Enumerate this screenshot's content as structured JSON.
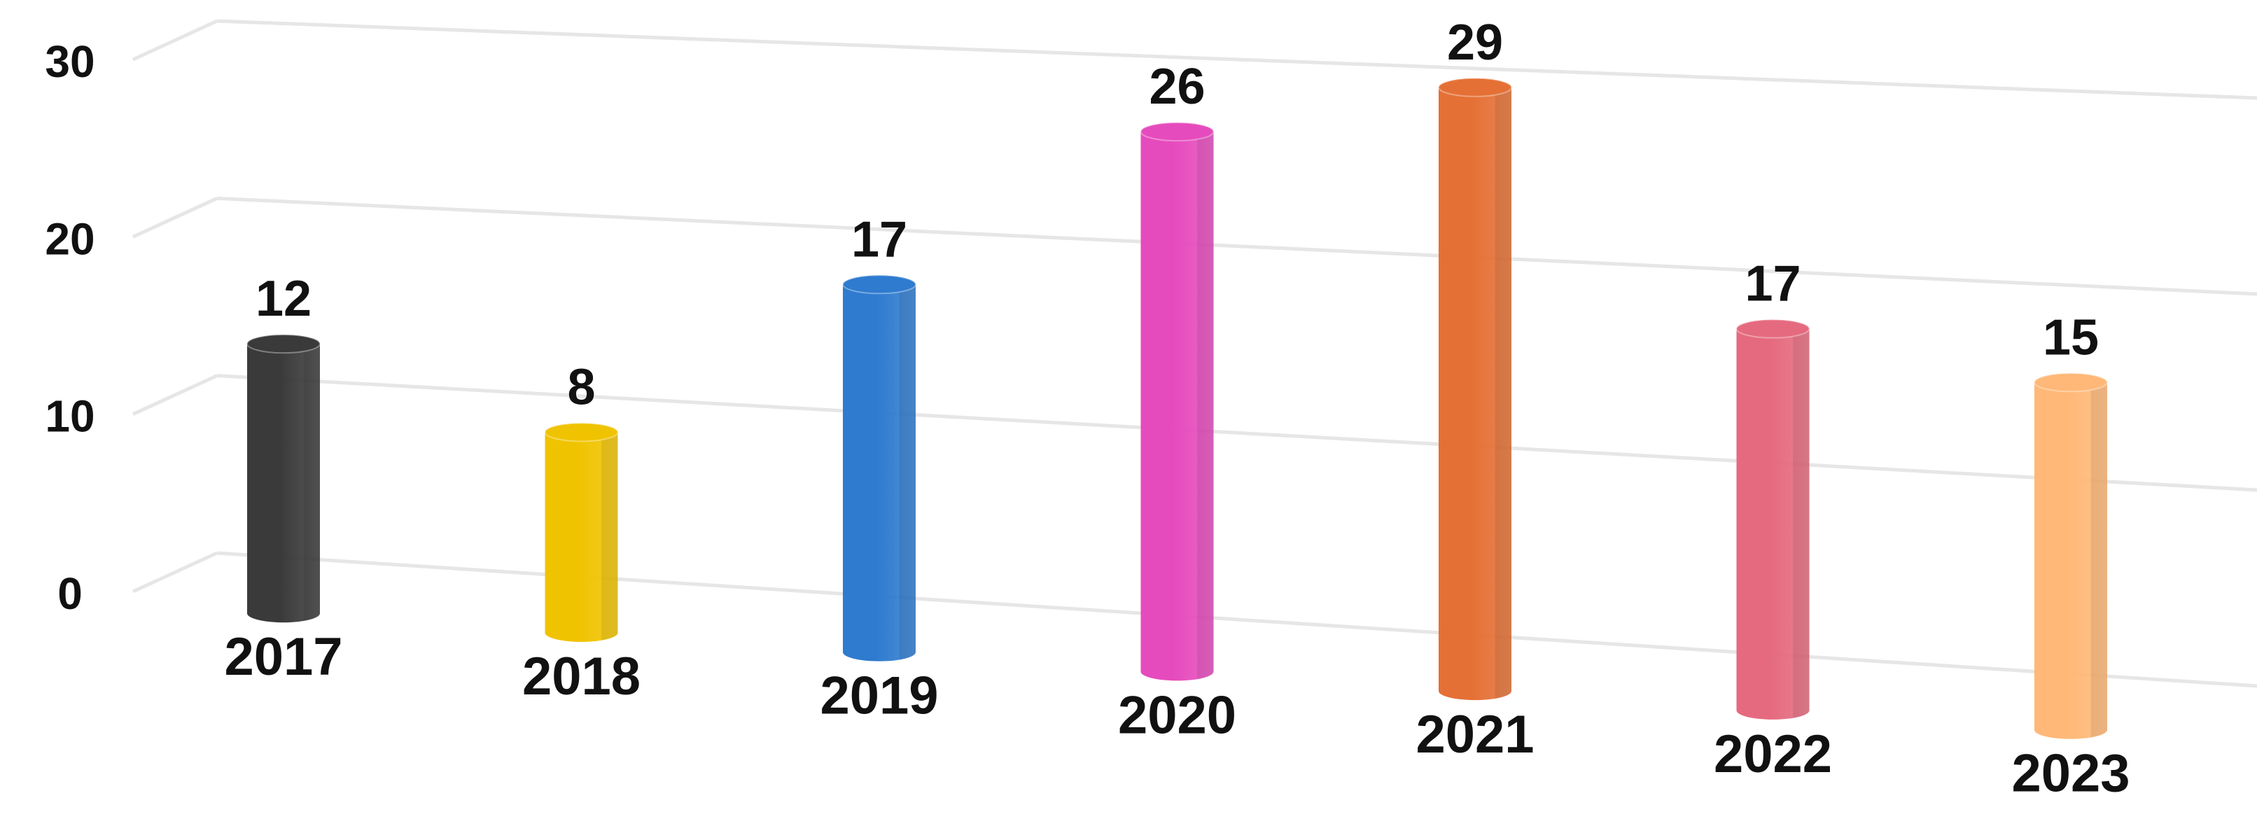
{
  "chart_data": {
    "type": "bar",
    "style": "3d-cylinder",
    "categories": [
      "2017",
      "2018",
      "2019",
      "2020",
      "2021",
      "2022",
      "2023"
    ],
    "values": [
      12,
      8,
      17,
      26,
      29,
      17,
      15
    ],
    "data_labels": [
      "12",
      "8",
      "17",
      "26",
      "29",
      "17",
      "15"
    ],
    "colors": [
      "#3a3a3a",
      "#f0c300",
      "#2e7bcf",
      "#e64bbd",
      "#e57035",
      "#e56a7f",
      "#ffb877"
    ],
    "title": "",
    "xlabel": "",
    "ylabel": "",
    "ylim": [
      0,
      30
    ],
    "yticks": [
      "0",
      "10",
      "20",
      "30"
    ],
    "grid": true,
    "legend": "none"
  }
}
